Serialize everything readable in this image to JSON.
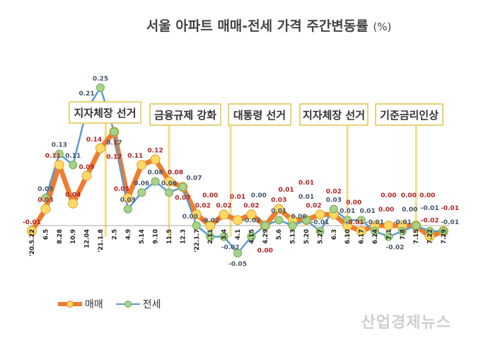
{
  "title": "서울 아파트 매매-전세 가격 주간변동률",
  "title_unit": "(%)",
  "watermark": "산업경제뉴스",
  "annotations": [
    {
      "label": "지자체장 선거",
      "at": "2.5"
    },
    {
      "label": "금융규제 강화",
      "at": "11.5"
    },
    {
      "label": "대통령 선거",
      "at": "4.1"
    },
    {
      "label": "지자체장 선거",
      "at": "6.10"
    },
    {
      "label": "기준금리인상",
      "at": "7.15"
    }
  ],
  "chart_data": {
    "type": "line",
    "title": "서울 아파트 매매-전세 가격 주간변동률 (%)",
    "categories": [
      "'20.5.22",
      "6.5",
      "8.28",
      "10.9",
      "12.04",
      "'21.1.8",
      "2.5",
      "4.9",
      "5.14",
      "9.10",
      "11.5",
      "12.3",
      "'22.1.7",
      "2.11",
      "3.4",
      "4.1",
      "4.15",
      "4.29",
      "5.6",
      "5.13",
      "5.20",
      "5.27",
      "6.3",
      "6.10",
      "6.17",
      "6.24",
      "7.1",
      "7.8",
      "7.15",
      "7.22",
      "7.29"
    ],
    "series": [
      {
        "name": "매매",
        "color": "#ED7D31",
        "marker": "#FFD966",
        "label_color": "#B22222",
        "values": [
          -0.01,
          0.03,
          0.11,
          0.04,
          0.09,
          0.14,
          0.17,
          0.05,
          0.11,
          0.12,
          0.08,
          0.07,
          0.02,
          0.0,
          0.02,
          0.01,
          0.02,
          0.0,
          0.03,
          0.01,
          0.01,
          0.02,
          0.02,
          0.0,
          -0.01,
          0.0,
          0.0,
          0.0,
          0.0,
          -0.02,
          -0.01
        ]
      },
      {
        "name": "전세",
        "color": "#5B9BD5",
        "marker": "#A9D18E",
        "label_color": "#44546A",
        "values": [
          null,
          0.05,
          0.13,
          0.11,
          0.21,
          0.25,
          0.17,
          0.03,
          0.06,
          0.08,
          0.06,
          0.07,
          0.0,
          -0.02,
          -0.02,
          -0.05,
          -0.02,
          0.0,
          0.01,
          0.0,
          0.01,
          -0.01,
          0.03,
          0.01,
          0.01,
          -0.01,
          -0.02,
          -0.01,
          0.0,
          -0.01,
          -0.01
        ]
      }
    ],
    "grid": false,
    "legend": "bottom-left"
  }
}
